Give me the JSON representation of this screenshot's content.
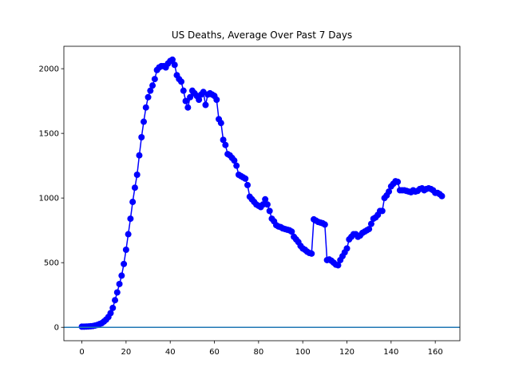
{
  "chart_data": {
    "type": "line",
    "title": "US Deaths, Average Over Past 7 Days",
    "x": [
      0,
      1,
      2,
      3,
      4,
      5,
      6,
      7,
      8,
      9,
      10,
      11,
      12,
      13,
      14,
      15,
      16,
      17,
      18,
      19,
      20,
      21,
      22,
      23,
      24,
      25,
      26,
      27,
      28,
      29,
      30,
      31,
      32,
      33,
      34,
      35,
      36,
      37,
      38,
      39,
      40,
      41,
      42,
      43,
      44,
      45,
      46,
      47,
      48,
      49,
      50,
      51,
      52,
      53,
      54,
      55,
      56,
      57,
      58,
      59,
      60,
      61,
      62,
      63,
      64,
      65,
      66,
      67,
      68,
      69,
      70,
      71,
      72,
      73,
      74,
      75,
      76,
      77,
      78,
      79,
      80,
      81,
      82,
      83,
      84,
      85,
      86,
      87,
      88,
      89,
      90,
      91,
      92,
      93,
      94,
      95,
      96,
      97,
      98,
      99,
      100,
      101,
      102,
      103,
      104,
      105,
      106,
      107,
      108,
      109,
      110,
      111,
      112,
      113,
      114,
      115,
      116,
      117,
      118,
      119,
      120,
      121,
      122,
      123,
      124,
      125,
      126,
      127,
      128,
      129,
      130,
      131,
      132,
      133,
      134,
      135,
      136,
      137,
      138,
      139,
      140,
      141,
      142,
      143,
      144,
      145,
      146,
      147,
      148,
      149,
      150,
      151,
      152,
      153,
      154,
      155,
      156,
      157,
      158,
      159,
      160,
      161,
      162,
      163
    ],
    "series": [
      {
        "color": "#0000ff",
        "values": [
          5,
          5,
          6,
          7,
          8,
          10,
          14,
          18,
          25,
          32,
          45,
          60,
          80,
          110,
          150,
          210,
          270,
          335,
          400,
          490,
          600,
          720,
          840,
          970,
          1080,
          1180,
          1330,
          1470,
          1590,
          1700,
          1780,
          1830,
          1870,
          1920,
          1990,
          2010,
          2020,
          2020,
          2010,
          2040,
          2060,
          2070,
          2030,
          1950,
          1920,
          1900,
          1830,
          1750,
          1700,
          1780,
          1830,
          1810,
          1790,
          1760,
          1800,
          1820,
          1720,
          1800,
          1810,
          1800,
          1790,
          1760,
          1610,
          1580,
          1450,
          1410,
          1340,
          1330,
          1310,
          1290,
          1250,
          1180,
          1170,
          1160,
          1150,
          1100,
          1010,
          990,
          970,
          950,
          940,
          930,
          950,
          990,
          950,
          900,
          840,
          820,
          790,
          780,
          775,
          765,
          760,
          755,
          750,
          740,
          700,
          680,
          660,
          630,
          610,
          600,
          585,
          575,
          570,
          835,
          825,
          815,
          810,
          805,
          795,
          520,
          525,
          515,
          500,
          485,
          480,
          520,
          550,
          580,
          610,
          680,
          700,
          720,
          720,
          700,
          710,
          730,
          740,
          750,
          760,
          800,
          840,
          850,
          870,
          900,
          900,
          1000,
          1020,
          1050,
          1090,
          1110,
          1130,
          1125,
          1060,
          1060,
          1060,
          1055,
          1050,
          1045,
          1060,
          1050,
          1055,
          1070,
          1075,
          1060,
          1070,
          1075,
          1070,
          1060,
          1040,
          1040,
          1030,
          1015
        ]
      }
    ],
    "hline": {
      "value": 0,
      "color": "#1f77b4"
    },
    "xlim": [
      -8.15,
      171.15
    ],
    "xticks": [
      0,
      20,
      40,
      60,
      80,
      100,
      120,
      140,
      160
    ],
    "ylim": [
      -103.5,
      2173.5
    ],
    "yticks": [
      0,
      500,
      1000,
      1500,
      2000
    ]
  }
}
